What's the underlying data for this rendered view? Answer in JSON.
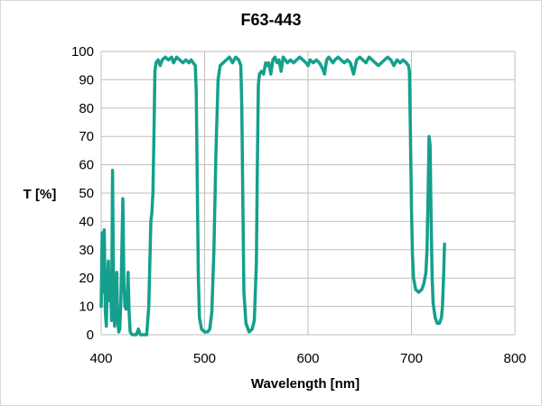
{
  "chart_data": {
    "type": "line",
    "title": "F63-443",
    "xlabel": "Wavelength [nm]",
    "ylabel": "T [%]",
    "xlim": [
      400,
      800
    ],
    "ylim": [
      0,
      100
    ],
    "x_ticks": [
      400,
      500,
      600,
      700,
      800
    ],
    "y_ticks": [
      0,
      10,
      20,
      30,
      40,
      50,
      60,
      70,
      80,
      90,
      100
    ],
    "grid": "vertical and horizontal major",
    "line_color": "#14a08c",
    "series": [
      {
        "name": "F63-443",
        "points": [
          [
            400,
            10
          ],
          [
            401,
            36
          ],
          [
            402,
            15
          ],
          [
            403,
            37
          ],
          [
            404,
            8
          ],
          [
            405,
            3
          ],
          [
            406,
            20
          ],
          [
            407,
            26
          ],
          [
            408,
            12
          ],
          [
            409,
            21
          ],
          [
            410,
            5
          ],
          [
            411,
            58
          ],
          [
            412,
            15
          ],
          [
            413,
            3
          ],
          [
            414,
            10
          ],
          [
            415,
            22
          ],
          [
            416,
            5
          ],
          [
            417,
            1
          ],
          [
            418,
            2
          ],
          [
            419,
            12
          ],
          [
            420,
            30
          ],
          [
            421,
            48
          ],
          [
            422,
            18
          ],
          [
            423,
            10
          ],
          [
            424,
            9
          ],
          [
            425,
            10
          ],
          [
            426,
            22
          ],
          [
            427,
            8
          ],
          [
            428,
            1
          ],
          [
            430,
            0
          ],
          [
            432,
            0
          ],
          [
            434,
            0
          ],
          [
            436,
            2
          ],
          [
            438,
            0
          ],
          [
            440,
            0
          ],
          [
            442,
            0
          ],
          [
            444,
            0
          ],
          [
            446,
            10
          ],
          [
            448,
            40
          ],
          [
            449,
            43
          ],
          [
            450,
            50
          ],
          [
            451,
            70
          ],
          [
            452,
            93
          ],
          [
            453,
            96
          ],
          [
            455,
            97
          ],
          [
            457,
            95
          ],
          [
            459,
            97
          ],
          [
            462,
            98
          ],
          [
            465,
            97
          ],
          [
            468,
            98
          ],
          [
            470,
            96
          ],
          [
            473,
            98
          ],
          [
            476,
            97
          ],
          [
            479,
            96
          ],
          [
            482,
            97
          ],
          [
            485,
            96
          ],
          [
            487,
            97
          ],
          [
            489,
            96
          ],
          [
            491,
            95
          ],
          [
            492,
            85
          ],
          [
            493,
            50
          ],
          [
            494,
            20
          ],
          [
            495,
            6
          ],
          [
            497,
            2
          ],
          [
            500,
            1
          ],
          [
            503,
            1
          ],
          [
            505,
            2
          ],
          [
            507,
            8
          ],
          [
            509,
            30
          ],
          [
            511,
            65
          ],
          [
            513,
            90
          ],
          [
            515,
            95
          ],
          [
            518,
            96
          ],
          [
            521,
            97
          ],
          [
            524,
            98
          ],
          [
            527,
            96
          ],
          [
            530,
            98
          ],
          [
            533,
            97
          ],
          [
            535,
            95
          ],
          [
            536,
            80
          ],
          [
            537,
            45
          ],
          [
            538,
            15
          ],
          [
            540,
            4
          ],
          [
            543,
            1
          ],
          [
            546,
            2
          ],
          [
            548,
            5
          ],
          [
            550,
            25
          ],
          [
            551,
            60
          ],
          [
            552,
            88
          ],
          [
            553,
            92
          ],
          [
            555,
            93
          ],
          [
            557,
            92
          ],
          [
            559,
            96
          ],
          [
            561,
            95
          ],
          [
            562,
            96
          ],
          [
            564,
            92
          ],
          [
            566,
            97
          ],
          [
            568,
            98
          ],
          [
            570,
            96
          ],
          [
            572,
            97
          ],
          [
            574,
            93
          ],
          [
            576,
            98
          ],
          [
            578,
            97
          ],
          [
            580,
            96
          ],
          [
            583,
            97
          ],
          [
            586,
            96
          ],
          [
            589,
            97
          ],
          [
            592,
            98
          ],
          [
            595,
            97
          ],
          [
            598,
            96
          ],
          [
            600,
            95
          ],
          [
            602,
            97
          ],
          [
            605,
            96
          ],
          [
            608,
            97
          ],
          [
            611,
            96
          ],
          [
            614,
            94
          ],
          [
            616,
            92
          ],
          [
            618,
            97
          ],
          [
            620,
            98
          ],
          [
            622,
            97
          ],
          [
            624,
            96
          ],
          [
            626,
            97
          ],
          [
            629,
            98
          ],
          [
            632,
            97
          ],
          [
            635,
            96
          ],
          [
            638,
            97
          ],
          [
            641,
            96
          ],
          [
            644,
            92
          ],
          [
            647,
            97
          ],
          [
            650,
            98
          ],
          [
            653,
            97
          ],
          [
            656,
            96
          ],
          [
            659,
            98
          ],
          [
            662,
            97
          ],
          [
            665,
            96
          ],
          [
            668,
            95
          ],
          [
            671,
            96
          ],
          [
            674,
            97
          ],
          [
            677,
            98
          ],
          [
            680,
            97
          ],
          [
            683,
            95
          ],
          [
            686,
            97
          ],
          [
            689,
            96
          ],
          [
            692,
            97
          ],
          [
            695,
            96
          ],
          [
            697,
            95
          ],
          [
            698,
            93
          ],
          [
            699,
            70
          ],
          [
            700,
            45
          ],
          [
            701,
            28
          ],
          [
            702,
            20
          ],
          [
            704,
            16
          ],
          [
            707,
            15
          ],
          [
            710,
            16
          ],
          [
            712,
            18
          ],
          [
            714,
            22
          ],
          [
            715,
            30
          ],
          [
            716,
            48
          ],
          [
            717,
            70
          ],
          [
            718,
            67
          ],
          [
            719,
            40
          ],
          [
            720,
            20
          ],
          [
            721,
            11
          ],
          [
            723,
            6
          ],
          [
            725,
            4
          ],
          [
            727,
            4
          ],
          [
            729,
            6
          ],
          [
            730,
            10
          ],
          [
            731,
            20
          ],
          [
            732,
            32
          ]
        ]
      }
    ]
  }
}
